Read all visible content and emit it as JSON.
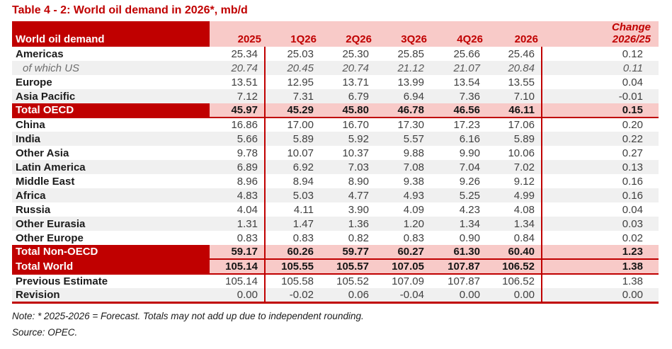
{
  "title": "Table 4 - 2: World oil demand in 2026*, mb/d",
  "colors": {
    "accent_dark_red": "#C00000",
    "header_pink": "#F8CAC8",
    "row_stripe_gray": "#F0F0F0",
    "value_text": "#3f3f3f"
  },
  "table": {
    "header": {
      "label": "World oil demand",
      "columns": [
        "2025",
        "1Q26",
        "2Q26",
        "3Q26",
        "4Q26",
        "2026"
      ],
      "change_line1": "Change",
      "change_line2": "2026/25"
    },
    "rows": [
      {
        "label": "Americas",
        "type": "normal",
        "shade": false,
        "values": [
          "25.34",
          "25.03",
          "25.30",
          "25.85",
          "25.66",
          "25.46",
          "0.12"
        ]
      },
      {
        "label": "of which US",
        "type": "sub",
        "shade": true,
        "values": [
          "20.74",
          "20.45",
          "20.74",
          "21.12",
          "21.07",
          "20.84",
          "0.11"
        ]
      },
      {
        "label": "Europe",
        "type": "normal",
        "shade": false,
        "values": [
          "13.51",
          "12.95",
          "13.71",
          "13.99",
          "13.54",
          "13.55",
          "0.04"
        ]
      },
      {
        "label": "Asia Pacific",
        "type": "normal",
        "shade": true,
        "values": [
          "7.12",
          "7.31",
          "6.79",
          "6.94",
          "7.36",
          "7.10",
          "-0.01"
        ]
      },
      {
        "label": "Total OECD",
        "type": "total",
        "shade": false,
        "line_below": true,
        "values": [
          "45.97",
          "45.29",
          "45.80",
          "46.78",
          "46.56",
          "46.11",
          "0.15"
        ]
      },
      {
        "label": "China",
        "type": "normal",
        "shade": false,
        "values": [
          "16.86",
          "17.00",
          "16.70",
          "17.30",
          "17.23",
          "17.06",
          "0.20"
        ]
      },
      {
        "label": "India",
        "type": "normal",
        "shade": true,
        "values": [
          "5.66",
          "5.89",
          "5.92",
          "5.57",
          "6.16",
          "5.89",
          "0.22"
        ]
      },
      {
        "label": "Other Asia",
        "type": "normal",
        "shade": false,
        "values": [
          "9.78",
          "10.07",
          "10.37",
          "9.88",
          "9.90",
          "10.06",
          "0.27"
        ]
      },
      {
        "label": "Latin America",
        "type": "normal",
        "shade": true,
        "values": [
          "6.89",
          "6.92",
          "7.03",
          "7.08",
          "7.04",
          "7.02",
          "0.13"
        ]
      },
      {
        "label": "Middle East",
        "type": "normal",
        "shade": false,
        "values": [
          "8.96",
          "8.94",
          "8.90",
          "9.38",
          "9.26",
          "9.12",
          "0.16"
        ]
      },
      {
        "label": "Africa",
        "type": "normal",
        "shade": true,
        "values": [
          "4.83",
          "5.03",
          "4.77",
          "4.93",
          "5.25",
          "4.99",
          "0.16"
        ]
      },
      {
        "label": "Russia",
        "type": "normal",
        "shade": false,
        "values": [
          "4.04",
          "4.11",
          "3.90",
          "4.09",
          "4.23",
          "4.08",
          "0.04"
        ]
      },
      {
        "label": "Other Eurasia",
        "type": "normal",
        "shade": true,
        "values": [
          "1.31",
          "1.47",
          "1.36",
          "1.20",
          "1.34",
          "1.34",
          "0.03"
        ]
      },
      {
        "label": "Other Europe",
        "type": "normal",
        "shade": false,
        "values": [
          "0.83",
          "0.83",
          "0.82",
          "0.83",
          "0.90",
          "0.84",
          "0.02"
        ]
      },
      {
        "label": "Total Non-OECD",
        "type": "total",
        "shade": false,
        "line_below": true,
        "values": [
          "59.17",
          "60.26",
          "59.77",
          "60.27",
          "61.30",
          "60.40",
          "1.23"
        ]
      },
      {
        "label": "Total World",
        "type": "total",
        "shade": false,
        "line_below": true,
        "values": [
          "105.14",
          "105.55",
          "105.57",
          "107.05",
          "107.87",
          "106.52",
          "1.38"
        ]
      },
      {
        "label": "Previous Estimate",
        "type": "normal",
        "shade": false,
        "values": [
          "105.14",
          "105.58",
          "105.52",
          "107.09",
          "107.87",
          "106.52",
          "1.38"
        ]
      },
      {
        "label": "Revision",
        "type": "normal",
        "shade": true,
        "values": [
          "0.00",
          "-0.02",
          "0.06",
          "-0.04",
          "0.00",
          "0.00",
          "0.00"
        ]
      }
    ]
  },
  "notes": {
    "note": "Note: * 2025-2026 = Forecast. Totals may not add up due to independent rounding.",
    "source": "Source: OPEC."
  }
}
